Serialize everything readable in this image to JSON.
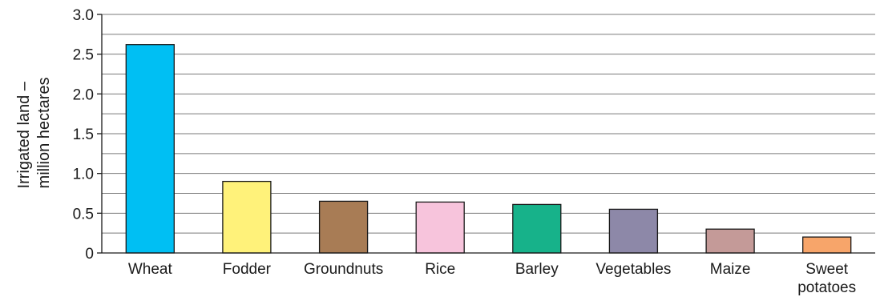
{
  "chart_data": {
    "type": "bar",
    "title": "",
    "xlabel": "",
    "ylabel_lines": [
      "Irrigated land –",
      "million hectares"
    ],
    "ylim": [
      0,
      3.0
    ],
    "yticks": [
      0,
      0.5,
      1.0,
      1.5,
      2.0,
      2.5,
      3.0
    ],
    "ytick_labels": [
      "0",
      "0.5",
      "1.0",
      "1.5",
      "2.0",
      "2.5",
      "3.0"
    ],
    "grid": true,
    "grid_step": 0.25,
    "categories": [
      [
        "Wheat"
      ],
      [
        "Fodder"
      ],
      [
        "Groundnuts"
      ],
      [
        "Rice"
      ],
      [
        "Barley"
      ],
      [
        "Vegetables"
      ],
      [
        "Maize"
      ],
      [
        "Sweet",
        "potatoes"
      ]
    ],
    "values": [
      2.62,
      0.9,
      0.65,
      0.64,
      0.61,
      0.55,
      0.3,
      0.2
    ],
    "colors": [
      "#00bff3",
      "#fff27a",
      "#a87c55",
      "#f7c4dc",
      "#17b28a",
      "#8d88a8",
      "#c49a98",
      "#f7a56a"
    ]
  }
}
